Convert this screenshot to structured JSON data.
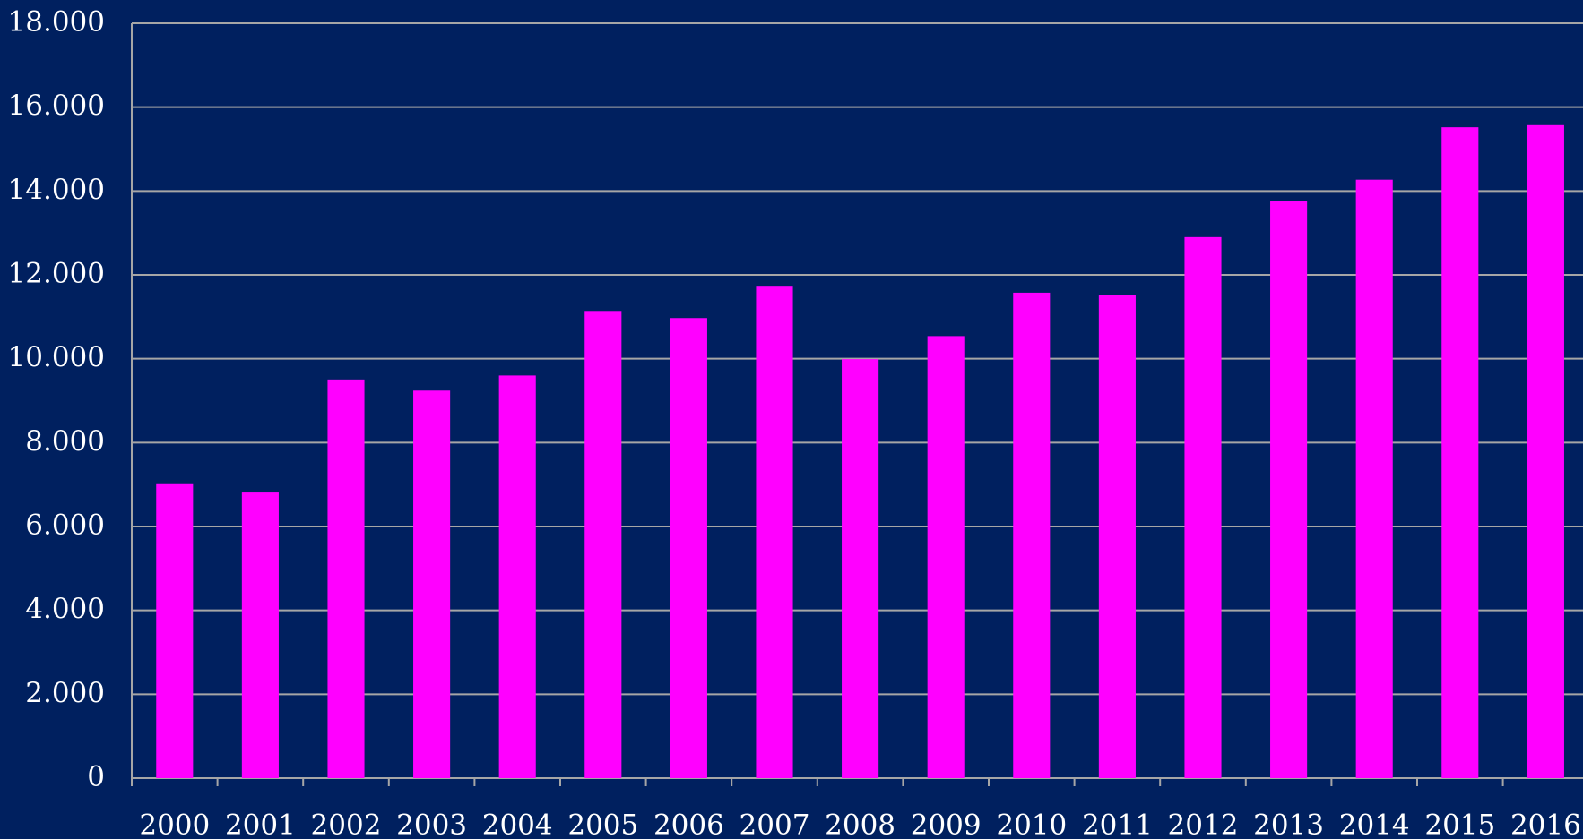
{
  "chart_data": {
    "type": "bar",
    "categories": [
      "2000",
      "2001",
      "2002",
      "2003",
      "2004",
      "2005",
      "2006",
      "2007",
      "2008",
      "2009",
      "2010",
      "2011",
      "2012",
      "2013",
      "2014",
      "2015",
      "2016"
    ],
    "values": [
      7030,
      6810,
      9505,
      9240,
      9600,
      11140,
      10970,
      11740,
      9990,
      10540,
      11575,
      11530,
      12900,
      13770,
      14270,
      15520,
      15570
    ],
    "color": "#ff00ff",
    "ylim": [
      0,
      18000
    ],
    "yticks": [
      0,
      {
        "value": 2000,
        "label": "2.000"
      },
      {
        "value": 4000,
        "label": "4.000"
      },
      {
        "value": 6000,
        "label": "6.000"
      },
      {
        "value": 8000,
        "label": "8.000"
      },
      {
        "value": 10000,
        "label": "10.000"
      },
      {
        "value": 12000,
        "label": "12.000"
      },
      {
        "value": 14000,
        "label": "14.000"
      },
      {
        "value": 16000,
        "label": "16.000"
      },
      {
        "value": 18000,
        "label": "18.000"
      }
    ],
    "grid": true
  }
}
